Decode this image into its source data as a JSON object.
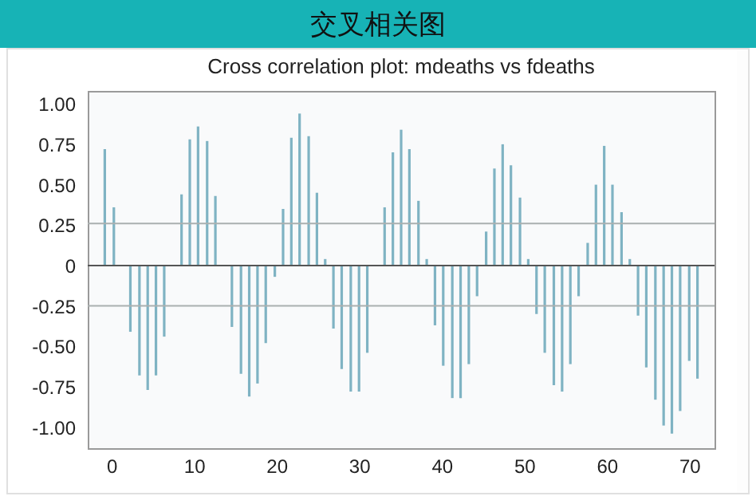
{
  "chart_data": {
    "type": "bar",
    "title": "交叉相关图",
    "subtitle": "Cross correlation plot: mdeaths vs fdeaths",
    "x": [
      -0.8,
      0.3,
      1.3,
      2.3,
      3.4,
      4.4,
      5.4,
      6.4,
      7.5,
      8.5,
      9.5,
      10.5,
      11.6,
      12.6,
      13.6,
      14.6,
      15.7,
      16.7,
      17.7,
      18.7,
      19.8,
      20.8,
      21.8,
      22.8,
      23.9,
      24.9,
      25.9,
      26.9,
      27.9,
      29.0,
      30.0,
      31.0,
      32.0,
      33.1,
      34.1,
      35.1,
      36.1,
      37.2,
      38.2,
      39.2,
      40.2,
      41.3,
      42.3,
      43.3,
      44.3,
      45.4,
      46.4,
      47.4,
      48.4,
      49.5,
      50.5,
      51.5,
      52.5,
      53.6,
      54.6,
      55.6,
      56.6,
      57.7,
      58.7,
      59.7,
      60.7,
      61.8,
      62.8,
      63.8,
      64.8,
      65.9,
      66.9,
      67.9,
      68.9,
      70.0,
      71.0
    ],
    "series": [
      {
        "color": "#7fb3c3",
        "values": [
          0.72,
          0.36,
          0,
          -0.41,
          -0.68,
          -0.77,
          -0.68,
          -0.44,
          0,
          0.44,
          0.78,
          0.86,
          0.77,
          0.43,
          0,
          -0.38,
          -0.67,
          -0.81,
          -0.73,
          -0.48,
          -0.07,
          0.35,
          0.79,
          0.94,
          0.8,
          0.45,
          0.04,
          -0.39,
          -0.64,
          -0.78,
          -0.78,
          -0.54,
          0,
          0.36,
          0.7,
          0.84,
          0.72,
          0.4,
          0.04,
          -0.37,
          -0.62,
          -0.82,
          -0.82,
          -0.61,
          -0.19,
          0.21,
          0.6,
          0.75,
          0.62,
          0.42,
          0.04,
          -0.3,
          -0.54,
          -0.74,
          -0.78,
          -0.61,
          -0.19,
          0.14,
          0.5,
          0.74,
          0.5,
          0.33,
          0.04,
          -0.31,
          -0.63,
          -0.83,
          -0.99,
          -1.04,
          -0.9,
          -0.59,
          -0.7
        ]
      }
    ],
    "xlim": [
      -1.9,
      72.1
    ],
    "xticks": [
      0,
      10,
      20,
      30,
      40,
      50,
      60,
      70
    ],
    "ylim": [
      -1.13,
      1.08
    ],
    "yticks": [
      {
        "value": -1,
        "label": "-1.00"
      },
      {
        "value": -0.75,
        "label": "-0.75"
      },
      {
        "value": -0.5,
        "label": "-0.50"
      },
      {
        "value": -0.25,
        "label": "-0.25"
      },
      0,
      {
        "value": 0.25,
        "label": "0.25"
      },
      {
        "value": 0.5,
        "label": "0.50"
      },
      {
        "value": 0.75,
        "label": "0.75"
      },
      {
        "value": 1,
        "label": "1.00"
      }
    ],
    "ref_lines": [
      {
        "axis": "y",
        "value": 0.26,
        "color": "#aab0b0"
      },
      {
        "axis": "y",
        "value": -0.25,
        "color": "#aab0b0"
      },
      {
        "axis": "y",
        "value": 0,
        "color": "#555555"
      }
    ],
    "grid": false
  }
}
